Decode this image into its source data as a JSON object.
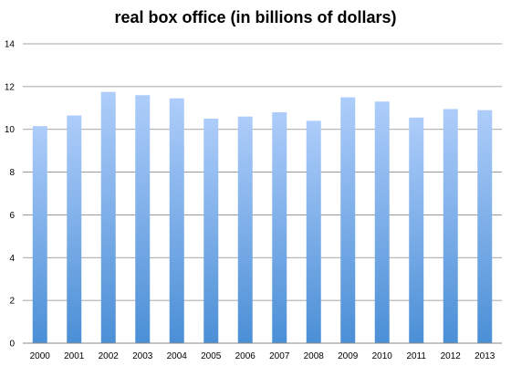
{
  "chart_data": {
    "type": "bar",
    "title": "real box office (in billions of dollars)",
    "xlabel": "",
    "ylabel": "",
    "categories": [
      "2000",
      "2001",
      "2002",
      "2003",
      "2004",
      "2005",
      "2006",
      "2007",
      "2008",
      "2009",
      "2010",
      "2011",
      "2012",
      "2013"
    ],
    "values": [
      10.15,
      10.65,
      11.75,
      11.6,
      11.45,
      10.5,
      10.6,
      10.8,
      10.4,
      11.5,
      11.3,
      10.55,
      10.95,
      10.9
    ],
    "ylim": [
      0,
      14
    ],
    "yticks": [
      0,
      2,
      4,
      6,
      8,
      10,
      12,
      14
    ],
    "grid": true,
    "legend": "none",
    "colors": {
      "bar_top": "#aecdfa",
      "bar_bottom": "#4b8fd6",
      "grid": "#8a8a8a",
      "axis": "#8a8a8a"
    }
  }
}
